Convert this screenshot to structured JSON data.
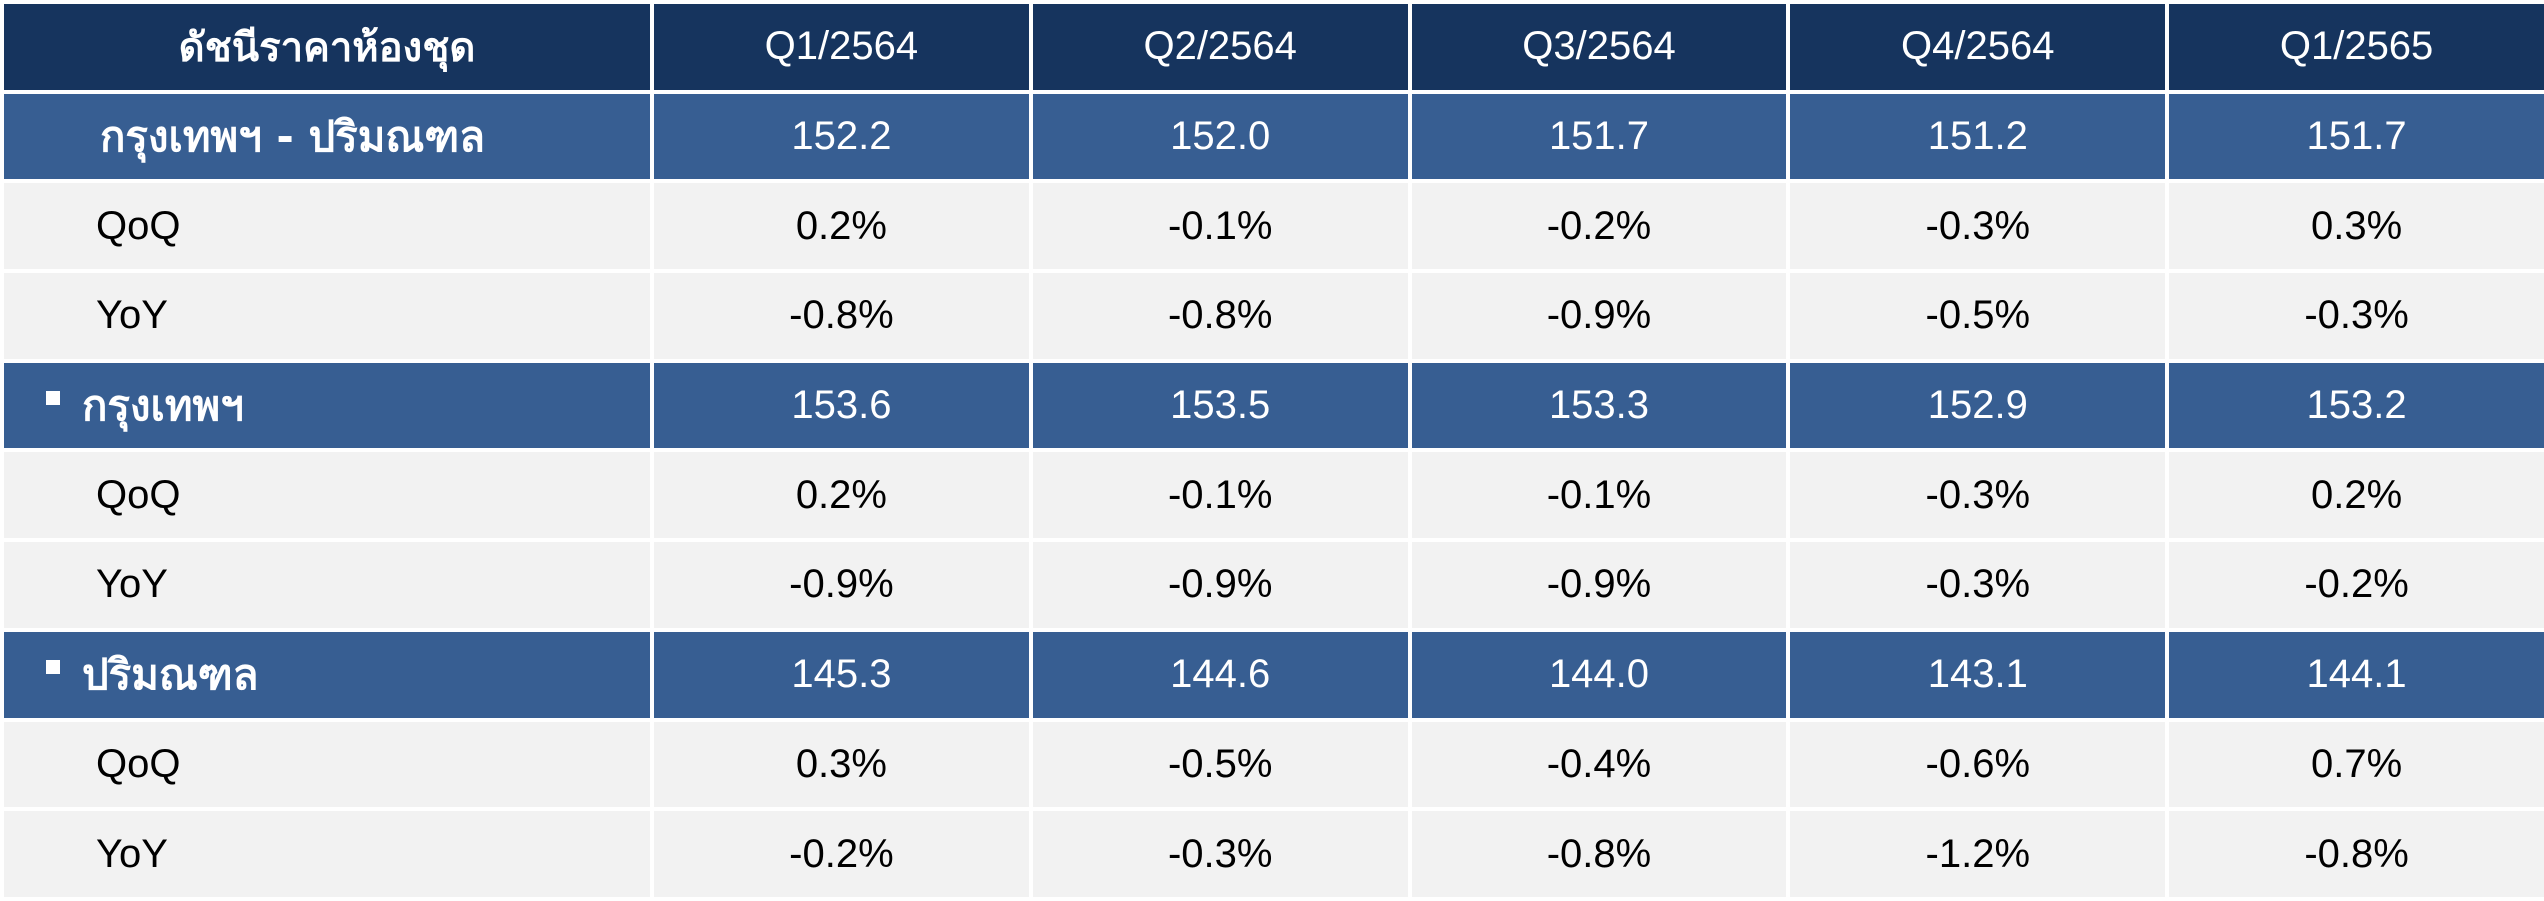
{
  "table": {
    "corner_label": "ดัชนีราคาห้องชุด",
    "columns": [
      "Q1/2564",
      "Q2/2564",
      "Q3/2564",
      "Q4/2564",
      "Q1/2565"
    ],
    "groups": [
      {
        "label": "กรุงเทพฯ - ปริมณฑล",
        "bullet": false,
        "values": [
          "152.2",
          "152.0",
          "151.7",
          "151.2",
          "151.7"
        ],
        "metrics": [
          {
            "label": "QoQ",
            "values": [
              "0.2%",
              "-0.1%",
              "-0.2%",
              "-0.3%",
              "0.3%"
            ]
          },
          {
            "label": "YoY",
            "values": [
              "-0.8%",
              "-0.8%",
              "-0.9%",
              "-0.5%",
              "-0.3%"
            ]
          }
        ]
      },
      {
        "label": "กรุงเทพฯ",
        "bullet": true,
        "values": [
          "153.6",
          "153.5",
          "153.3",
          "152.9",
          "153.2"
        ],
        "metrics": [
          {
            "label": "QoQ",
            "values": [
              "0.2%",
              "-0.1%",
              "-0.1%",
              "-0.3%",
              "0.2%"
            ]
          },
          {
            "label": "YoY",
            "values": [
              "-0.9%",
              "-0.9%",
              "-0.9%",
              "-0.3%",
              "-0.2%"
            ]
          }
        ]
      },
      {
        "label": "ปริมณฑล",
        "bullet": true,
        "values": [
          "145.3",
          "144.6",
          "144.0",
          "143.1",
          "144.1"
        ],
        "metrics": [
          {
            "label": "QoQ",
            "values": [
              "0.3%",
              "-0.5%",
              "-0.4%",
              "-0.6%",
              "0.7%"
            ]
          },
          {
            "label": "YoY",
            "values": [
              "-0.2%",
              "-0.3%",
              "-0.8%",
              "-1.2%",
              "-0.8%"
            ]
          }
        ]
      }
    ],
    "colors": {
      "header_bg": "#16345e",
      "group_bg": "#375e92",
      "metric_bg": "#f2f2f2",
      "negative_text": "#e8000f"
    }
  }
}
